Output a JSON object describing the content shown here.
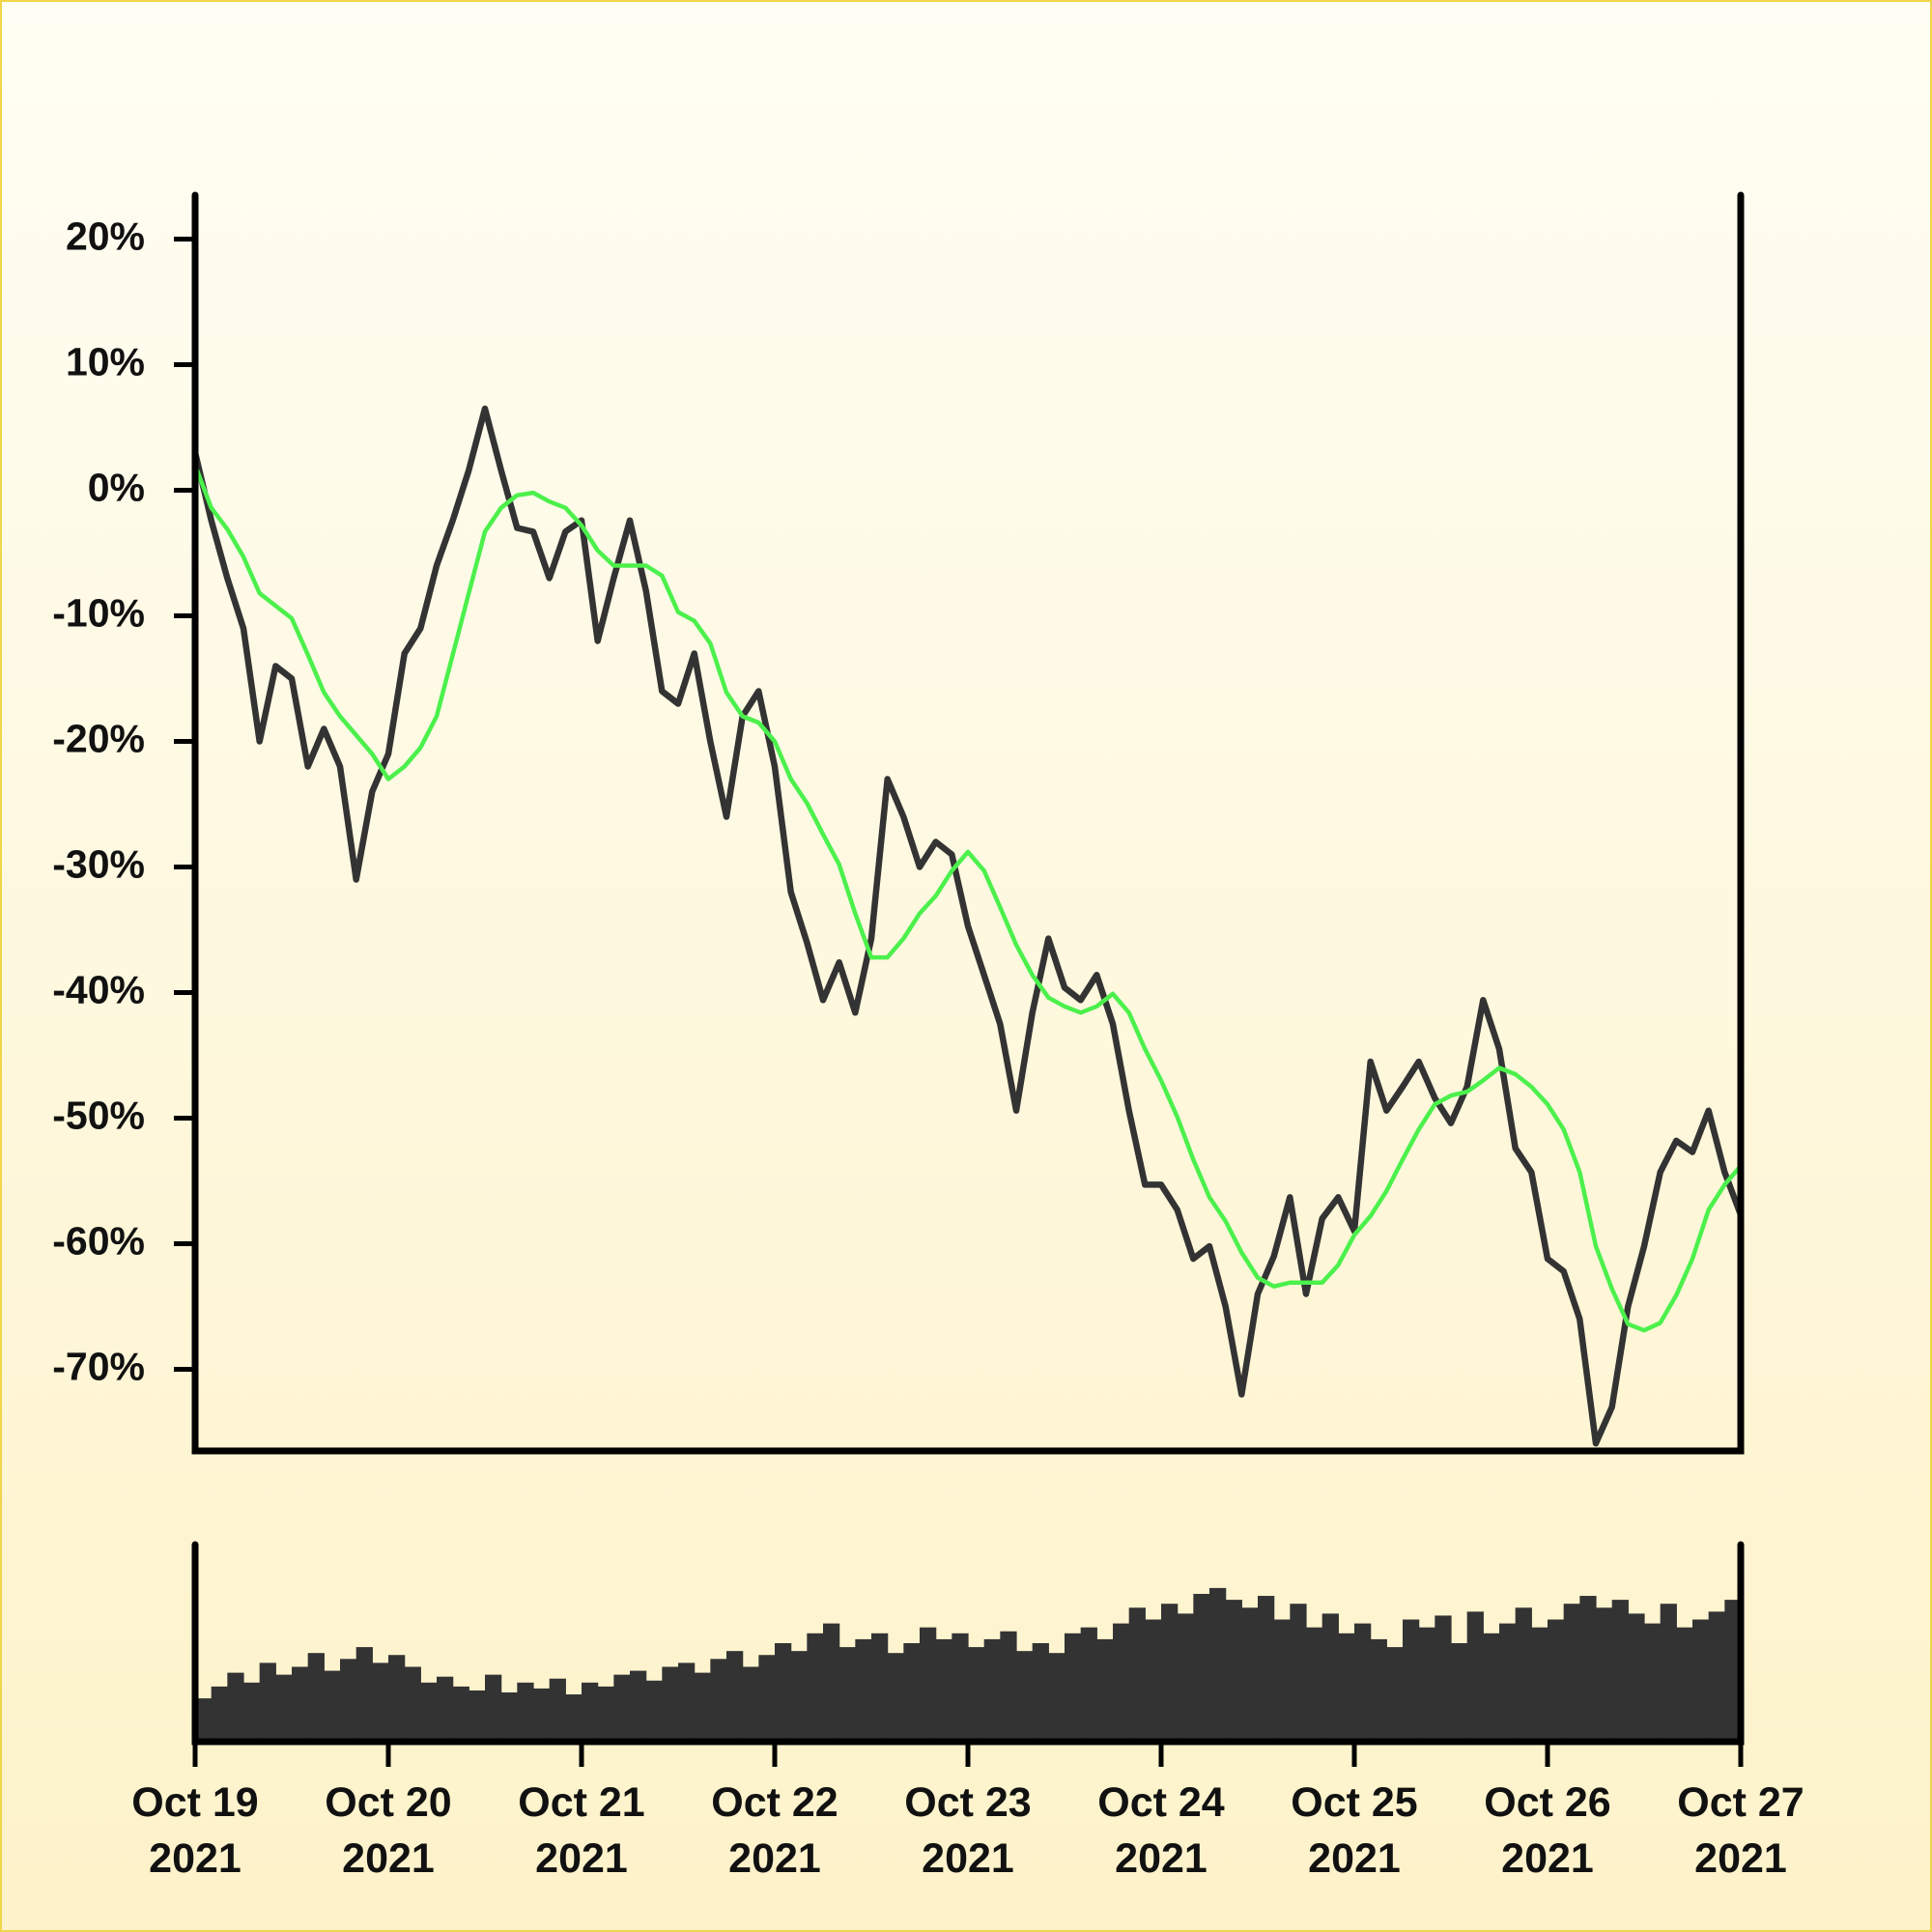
{
  "chart_data": [
    {
      "type": "line",
      "x": [
        0,
        2,
        4,
        6,
        8,
        10,
        12,
        14,
        16,
        18,
        20,
        22,
        24,
        26,
        28,
        30,
        32,
        34,
        36,
        38,
        40,
        42,
        44,
        46,
        48,
        50,
        52,
        54,
        56,
        58,
        60,
        62,
        64,
        66,
        68,
        70,
        72,
        74,
        76,
        78,
        80,
        82,
        84,
        86,
        88,
        90,
        92,
        94,
        96,
        98,
        100,
        102,
        104,
        106,
        108,
        110,
        112,
        114,
        116,
        118,
        120,
        122,
        124,
        126,
        128,
        130,
        132,
        134,
        136,
        138,
        140,
        142,
        144,
        146,
        148,
        150,
        152,
        154,
        156,
        158,
        160,
        162,
        164,
        166,
        168,
        170,
        172,
        174,
        176,
        178,
        180,
        182,
        184,
        186,
        188,
        190,
        192
      ],
      "xlim": [
        0,
        192
      ],
      "ylim": [
        -76.5,
        23.5
      ],
      "yticks": [
        {
          "value": -70,
          "label": "-70%"
        },
        {
          "value": -60,
          "label": "-60%"
        },
        {
          "value": -50,
          "label": "-50%"
        },
        {
          "value": -40,
          "label": "-40%"
        },
        {
          "value": -30,
          "label": "-30%"
        },
        {
          "value": -20,
          "label": "-20%"
        },
        {
          "value": -10,
          "label": "-10%"
        },
        {
          "value": 0,
          "label": "0%"
        },
        {
          "value": 10,
          "label": "10%"
        },
        {
          "value": 20,
          "label": "20%"
        }
      ],
      "series": [
        {
          "color": "#333333",
          "values": [
            3,
            -2.4,
            -7,
            -11,
            -20,
            -14,
            -15,
            -22,
            -19,
            -22,
            -31,
            -24,
            -21,
            -13,
            -11,
            -6,
            -2.4,
            1.6,
            6.5,
            1.6,
            -3,
            -3.3,
            -7,
            -3.3,
            -2.4,
            -12,
            -7,
            -2.4,
            -8,
            -16,
            -17,
            -13,
            -20,
            -26,
            -18,
            -16,
            -22,
            -32,
            -36,
            -40.6,
            -37.6,
            -41.6,
            -35.7,
            -23,
            -26,
            -30,
            -28,
            -29,
            -34.7,
            -38.6,
            -42.5,
            -49.4,
            -41.6,
            -35.7,
            -39.6,
            -40.6,
            -38.6,
            -42.5,
            -49.4,
            -55.3,
            -55.3,
            -57.3,
            -61.2,
            -60.2,
            -65,
            -72,
            -64,
            -61,
            -56.3,
            -64,
            -58,
            -56.3,
            -59,
            -45.5,
            -49.4,
            -47.5,
            -45.5,
            -48.4,
            -50.4,
            -47.5,
            -40.6,
            -44.5,
            -52.4,
            -54.3,
            -61.2,
            -62.2,
            -66,
            -75.9,
            -73,
            -65,
            -60.2,
            -54.3,
            -51.8,
            -52.7,
            -49.4,
            -54.3,
            -57.7
          ]
        },
        {
          "color": "#4cf04c",
          "values": [
            2,
            -1.4,
            -3.1,
            -5.3,
            -8.2,
            -9.2,
            -10.2,
            -13.1,
            -16.1,
            -18,
            -19.5,
            -21,
            -23,
            -22,
            -20.5,
            -18,
            -13.1,
            -8.2,
            -3.3,
            -1.4,
            -0.4,
            -0.2,
            -0.9,
            -1.4,
            -2.8,
            -4.8,
            -6,
            -6,
            -6,
            -6.8,
            -9.7,
            -10.4,
            -12.2,
            -16.1,
            -18,
            -18.5,
            -20,
            -23,
            -24.9,
            -27.4,
            -29.8,
            -33.7,
            -37.2,
            -37.2,
            -35.7,
            -33.7,
            -32.3,
            -30.3,
            -28.8,
            -30.3,
            -33.2,
            -36.2,
            -38.6,
            -40.4,
            -41.1,
            -41.6,
            -41.1,
            -40.1,
            -41.6,
            -44.5,
            -47,
            -49.9,
            -53.3,
            -56.3,
            -58.2,
            -60.7,
            -62.7,
            -63.4,
            -63.1,
            -63.1,
            -63.1,
            -61.7,
            -59.3,
            -57.8,
            -55.8,
            -53.3,
            -50.9,
            -48.9,
            -48.2,
            -47.9,
            -47,
            -46,
            -46.5,
            -47.5,
            -48.9,
            -50.9,
            -54.3,
            -60.2,
            -63.6,
            -66.4,
            -66.9,
            -66.3,
            -64.1,
            -61.2,
            -57.3,
            -55.3,
            -53.8
          ]
        }
      ]
    },
    {
      "type": "bar",
      "x": [
        0,
        2,
        4,
        6,
        8,
        10,
        12,
        14,
        16,
        18,
        20,
        22,
        24,
        26,
        28,
        30,
        32,
        34,
        36,
        38,
        40,
        42,
        44,
        46,
        48,
        50,
        52,
        54,
        56,
        58,
        60,
        62,
        64,
        66,
        68,
        70,
        72,
        74,
        76,
        78,
        80,
        82,
        84,
        86,
        88,
        90,
        92,
        94,
        96,
        98,
        100,
        102,
        104,
        106,
        108,
        110,
        112,
        114,
        116,
        118,
        120,
        122,
        124,
        126,
        128,
        130,
        132,
        134,
        136,
        138,
        140,
        142,
        144,
        146,
        148,
        150,
        152,
        154,
        156,
        158,
        160,
        162,
        164,
        166,
        168,
        170,
        172,
        174,
        176,
        178,
        180,
        182,
        184,
        186,
        188,
        190
      ],
      "xlim": [
        0,
        192
      ],
      "ylim": [
        0,
        100
      ],
      "color": "#333333",
      "values": [
        22,
        28,
        35,
        30,
        40,
        34,
        38,
        45,
        36,
        42,
        48,
        40,
        44,
        38,
        30,
        33,
        28,
        26,
        34,
        25,
        30,
        27,
        32,
        24,
        30,
        28,
        34,
        36,
        31,
        38,
        40,
        35,
        42,
        46,
        38,
        44,
        50,
        46,
        55,
        60,
        48,
        52,
        55,
        45,
        50,
        58,
        52,
        55,
        48,
        52,
        56,
        46,
        50,
        45,
        55,
        58,
        52,
        60,
        68,
        62,
        70,
        65,
        75,
        78,
        72,
        68,
        74,
        62,
        70,
        58,
        65,
        55,
        60,
        52,
        48,
        62,
        58,
        64,
        50,
        66,
        55,
        60,
        68,
        58,
        62,
        70,
        74,
        68,
        72,
        65,
        60,
        70,
        58,
        62,
        66,
        72
      ],
      "xticks": [
        {
          "value": 0,
          "label": "Oct 19 2021"
        },
        {
          "value": 24,
          "label": "Oct 20 2021"
        },
        {
          "value": 48,
          "label": "Oct 21 2021"
        },
        {
          "value": 72,
          "label": "Oct 22 2021"
        },
        {
          "value": 96,
          "label": "Oct 23 2021"
        },
        {
          "value": 120,
          "label": "Oct 24 2021"
        },
        {
          "value": 144,
          "label": "Oct 25 2021"
        },
        {
          "value": 168,
          "label": "Oct 26 2021"
        },
        {
          "value": 192,
          "label": "Oct 27 2021"
        }
      ]
    }
  ]
}
